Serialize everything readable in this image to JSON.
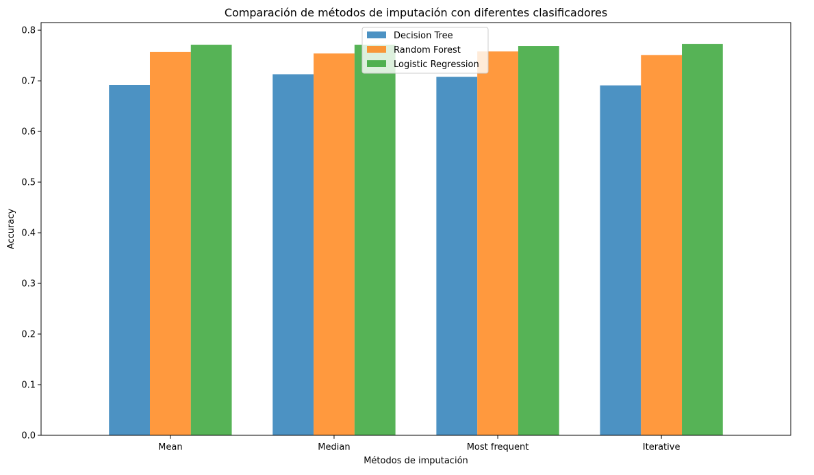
{
  "chart_data": {
    "type": "bar",
    "title": "Comparación de métodos de imputación con diferentes clasificadores",
    "xlabel": "Métodos de imputación",
    "ylabel": "Accuracy",
    "categories": [
      "Mean",
      "Median",
      "Most frequent",
      "Iterative"
    ],
    "series": [
      {
        "name": "Decision Tree",
        "color": "#1f77b4",
        "values": [
          0.692,
          0.713,
          0.708,
          0.691
        ]
      },
      {
        "name": "Random Forest",
        "color": "#ff7f0e",
        "values": [
          0.757,
          0.754,
          0.758,
          0.751
        ]
      },
      {
        "name": "Logistic Regression",
        "color": "#2ca02c",
        "values": [
          0.771,
          0.771,
          0.769,
          0.773
        ]
      }
    ],
    "bar_opacity": 0.8,
    "ylim": [
      0,
      0.815
    ],
    "yticks": [
      "0.0",
      "0.1",
      "0.2",
      "0.3",
      "0.4",
      "0.5",
      "0.6",
      "0.7",
      "0.8"
    ],
    "legend_position": "upper center",
    "grid": false
  }
}
